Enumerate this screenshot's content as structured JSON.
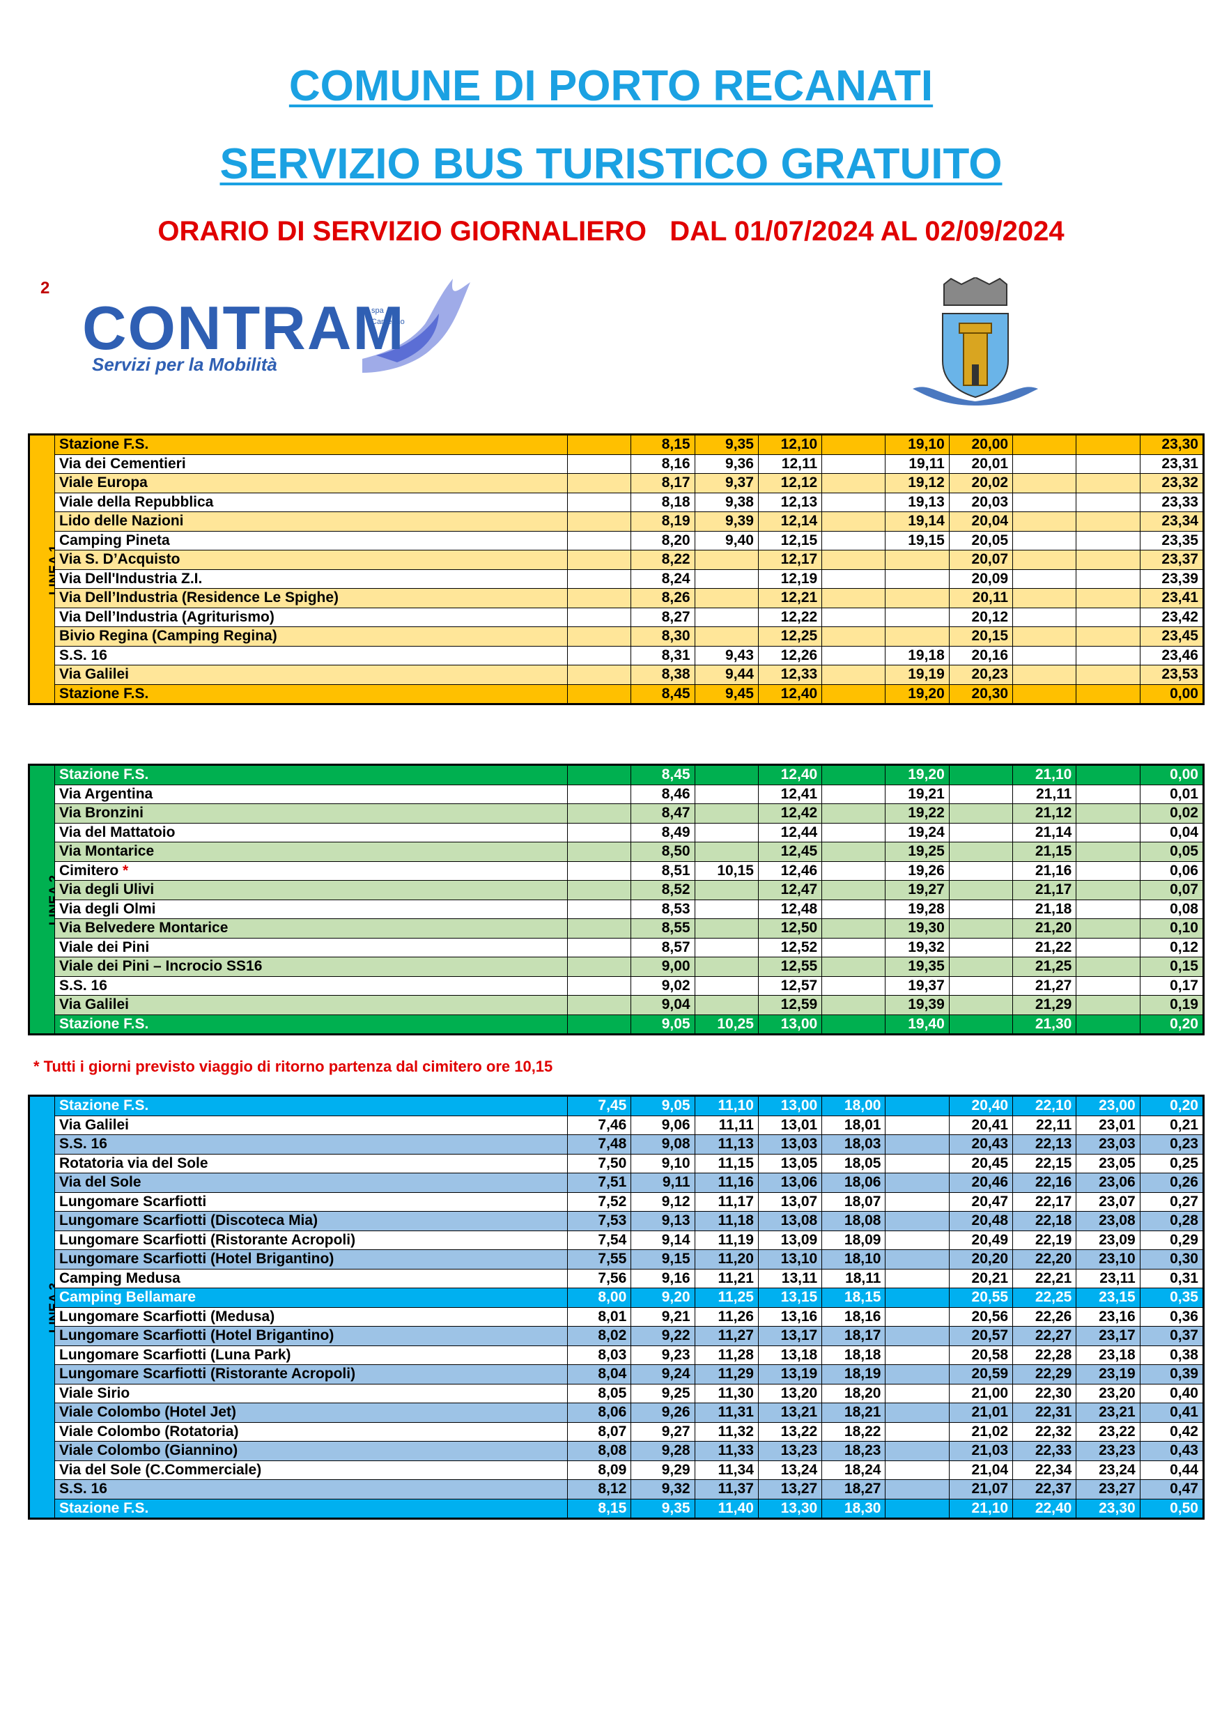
{
  "header": {
    "title": "COMUNE DI PORTO RECANATI",
    "subtitle": "SERVIZIO BUS TURISTICO GRATUITO",
    "schedule": "ORARIO DI SERVIZIO GIORNALIERO   DAL 01/07/2024 AL 02/09/2024"
  },
  "page_number": "2",
  "logo": {
    "name": "CONTRAM",
    "small": [
      "spa",
      "Camerino"
    ],
    "tagline": "Servizi per la Mobilità"
  },
  "tables": [
    {
      "label": "LINEA 1",
      "rows": [
        {
          "name": "Stazione F.S.",
          "times": [
            null,
            "8,15",
            "9,35",
            "12,10",
            null,
            "19,10",
            "20,00",
            null,
            null,
            "23,30"
          ]
        },
        {
          "name": "Via dei Cementieri",
          "times": [
            null,
            "8,16",
            "9,36",
            "12,11",
            null,
            "19,11",
            "20,01",
            null,
            null,
            "23,31"
          ]
        },
        {
          "name": "Viale Europa",
          "times": [
            null,
            "8,17",
            "9,37",
            "12,12",
            null,
            "19,12",
            "20,02",
            null,
            null,
            "23,32"
          ]
        },
        {
          "name": "Viale della Repubblica",
          "times": [
            null,
            "8,18",
            "9,38",
            "12,13",
            null,
            "19,13",
            "20,03",
            null,
            null,
            "23,33"
          ]
        },
        {
          "name": "Lido delle Nazioni",
          "times": [
            null,
            "8,19",
            "9,39",
            "12,14",
            null,
            "19,14",
            "20,04",
            null,
            null,
            "23,34"
          ]
        },
        {
          "name": "Camping Pineta",
          "times": [
            null,
            "8,20",
            "9,40",
            "12,15",
            null,
            "19,15",
            "20,05",
            null,
            null,
            "23,35"
          ]
        },
        {
          "name": "Via S. D’Acquisto",
          "times": [
            null,
            "8,22",
            null,
            "12,17",
            null,
            null,
            "20,07",
            null,
            null,
            "23,37"
          ]
        },
        {
          "name": "Via Dell'Industria Z.I.",
          "times": [
            null,
            "8,24",
            null,
            "12,19",
            null,
            null,
            "20,09",
            null,
            null,
            "23,39"
          ]
        },
        {
          "name": "Via Dell’Industria (Residence Le Spighe)",
          "times": [
            null,
            "8,26",
            null,
            "12,21",
            null,
            null,
            "20,11",
            null,
            null,
            "23,41"
          ]
        },
        {
          "name": "Via Dell’Industria (Agriturismo)",
          "times": [
            null,
            "8,27",
            null,
            "12,22",
            null,
            null,
            "20,12",
            null,
            null,
            "23,42"
          ]
        },
        {
          "name": "Bivio Regina (Camping Regina)",
          "times": [
            null,
            "8,30",
            null,
            "12,25",
            null,
            null,
            "20,15",
            null,
            null,
            "23,45"
          ]
        },
        {
          "name": "S.S. 16",
          "times": [
            null,
            "8,31",
            "9,43",
            "12,26",
            null,
            "19,18",
            "20,16",
            null,
            null,
            "23,46"
          ]
        },
        {
          "name": "Via Galilei",
          "times": [
            null,
            "8,38",
            "9,44",
            "12,33",
            null,
            "19,19",
            "20,23",
            null,
            null,
            "23,53"
          ]
        },
        {
          "name": "Stazione F.S.",
          "times": [
            null,
            "8,45",
            "9,45",
            "12,40",
            null,
            "19,20",
            "20,30",
            null,
            null,
            "0,00"
          ]
        }
      ]
    },
    {
      "label": "LINEA 2",
      "rows": [
        {
          "name": "Stazione F.S.",
          "times": [
            null,
            "8,45",
            null,
            "12,40",
            null,
            "19,20",
            null,
            "21,10",
            null,
            "0,00"
          ]
        },
        {
          "name": "Via Argentina",
          "times": [
            null,
            "8,46",
            null,
            "12,41",
            null,
            "19,21",
            null,
            "21,11",
            null,
            "0,01"
          ]
        },
        {
          "name": "Via Bronzini",
          "times": [
            null,
            "8,47",
            null,
            "12,42",
            null,
            "19,22",
            null,
            "21,12",
            null,
            "0,02"
          ]
        },
        {
          "name": "Via del Mattatoio",
          "times": [
            null,
            "8,49",
            null,
            "12,44",
            null,
            "19,24",
            null,
            "21,14",
            null,
            "0,04"
          ]
        },
        {
          "name": "Via Montarice",
          "times": [
            null,
            "8,50",
            null,
            "12,45",
            null,
            "19,25",
            null,
            "21,15",
            null,
            "0,05"
          ]
        },
        {
          "name": "Cimitero",
          "mark": "*",
          "times": [
            null,
            "8,51",
            "10,15",
            "12,46",
            null,
            "19,26",
            null,
            "21,16",
            null,
            "0,06"
          ]
        },
        {
          "name": "Via degli Ulivi",
          "times": [
            null,
            "8,52",
            null,
            "12,47",
            null,
            "19,27",
            null,
            "21,17",
            null,
            "0,07"
          ]
        },
        {
          "name": "Via degli Olmi",
          "times": [
            null,
            "8,53",
            null,
            "12,48",
            null,
            "19,28",
            null,
            "21,18",
            null,
            "0,08"
          ]
        },
        {
          "name": "Via Belvedere Montarice",
          "times": [
            null,
            "8,55",
            null,
            "12,50",
            null,
            "19,30",
            null,
            "21,20",
            null,
            "0,10"
          ]
        },
        {
          "name": "Viale dei Pini",
          "times": [
            null,
            "8,57",
            null,
            "12,52",
            null,
            "19,32",
            null,
            "21,22",
            null,
            "0,12"
          ]
        },
        {
          "name": "Viale dei Pini – Incrocio SS16",
          "times": [
            null,
            "9,00",
            null,
            "12,55",
            null,
            "19,35",
            null,
            "21,25",
            null,
            "0,15"
          ]
        },
        {
          "name": "S.S. 16",
          "times": [
            null,
            "9,02",
            null,
            "12,57",
            null,
            "19,37",
            null,
            "21,27",
            null,
            "0,17"
          ]
        },
        {
          "name": "Via Galilei",
          "times": [
            null,
            "9,04",
            null,
            "12,59",
            null,
            "19,39",
            null,
            "21,29",
            null,
            "0,19"
          ]
        },
        {
          "name": "Stazione F.S.",
          "times": [
            null,
            "9,05",
            "10,25",
            "13,00",
            null,
            "19,40",
            null,
            "21,30",
            null,
            "0,20"
          ]
        }
      ]
    },
    {
      "label": "LINEA 3",
      "rows": [
        {
          "name": "Stazione F.S.",
          "times": [
            "7,45",
            "9,05",
            "11,10",
            "13,00",
            "18,00",
            null,
            "20,40",
            "22,10",
            "23,00",
            "0,20"
          ]
        },
        {
          "name": "Via Galilei",
          "times": [
            "7,46",
            "9,06",
            "11,11",
            "13,01",
            "18,01",
            null,
            "20,41",
            "22,11",
            "23,01",
            "0,21"
          ]
        },
        {
          "name": "S.S. 16",
          "times": [
            "7,48",
            "9,08",
            "11,13",
            "13,03",
            "18,03",
            null,
            "20,43",
            "22,13",
            "23,03",
            "0,23"
          ]
        },
        {
          "name": "Rotatoria via del Sole",
          "times": [
            "7,50",
            "9,10",
            "11,15",
            "13,05",
            "18,05",
            null,
            "20,45",
            "22,15",
            "23,05",
            "0,25"
          ]
        },
        {
          "name": "Via del Sole",
          "times": [
            "7,51",
            "9,11",
            "11,16",
            "13,06",
            "18,06",
            null,
            "20,46",
            "22,16",
            "23,06",
            "0,26"
          ]
        },
        {
          "name": "Lungomare Scarfiotti",
          "times": [
            "7,52",
            "9,12",
            "11,17",
            "13,07",
            "18,07",
            null,
            "20,47",
            "22,17",
            "23,07",
            "0,27"
          ]
        },
        {
          "name": "Lungomare Scarfiotti (Discoteca Mia)",
          "times": [
            "7,53",
            "9,13",
            "11,18",
            "13,08",
            "18,08",
            null,
            "20,48",
            "22,18",
            "23,08",
            "0,28"
          ]
        },
        {
          "name": "Lungomare Scarfiotti (Ristorante Acropoli)",
          "times": [
            "7,54",
            "9,14",
            "11,19",
            "13,09",
            "18,09",
            null,
            "20,49",
            "22,19",
            "23,09",
            "0,29"
          ]
        },
        {
          "name": "Lungomare Scarfiotti (Hotel Brigantino)",
          "times": [
            "7,55",
            "9,15",
            "11,20",
            "13,10",
            "18,10",
            null,
            "20,20",
            "22,20",
            "23,10",
            "0,30"
          ]
        },
        {
          "name": "Camping Medusa",
          "times": [
            "7,56",
            "9,16",
            "11,21",
            "13,11",
            "18,11",
            null,
            "20,21",
            "22,21",
            "23,11",
            "0,31"
          ]
        },
        {
          "name": "Camping Bellamare",
          "times": [
            "8,00",
            "9,20",
            "11,25",
            "13,15",
            "18,15",
            null,
            "20,55",
            "22,25",
            "23,15",
            "0,35"
          ]
        },
        {
          "name": "Lungomare Scarfiotti (Medusa)",
          "times": [
            "8,01",
            "9,21",
            "11,26",
            "13,16",
            "18,16",
            null,
            "20,56",
            "22,26",
            "23,16",
            "0,36"
          ]
        },
        {
          "name": "Lungomare Scarfiotti (Hotel Brigantino)",
          "times": [
            "8,02",
            "9,22",
            "11,27",
            "13,17",
            "18,17",
            null,
            "20,57",
            "22,27",
            "23,17",
            "0,37"
          ]
        },
        {
          "name": "Lungomare Scarfiotti (Luna Park)",
          "times": [
            "8,03",
            "9,23",
            "11,28",
            "13,18",
            "18,18",
            null,
            "20,58",
            "22,28",
            "23,18",
            "0,38"
          ]
        },
        {
          "name": "Lungomare Scarfiotti (Ristorante Acropoli)",
          "times": [
            "8,04",
            "9,24",
            "11,29",
            "13,19",
            "18,19",
            null,
            "20,59",
            "22,29",
            "23,19",
            "0,39"
          ]
        },
        {
          "name": "Viale Sirio",
          "times": [
            "8,05",
            "9,25",
            "11,30",
            "13,20",
            "18,20",
            null,
            "21,00",
            "22,30",
            "23,20",
            "0,40"
          ]
        },
        {
          "name": "Viale Colombo (Hotel Jet)",
          "times": [
            "8,06",
            "9,26",
            "11,31",
            "13,21",
            "18,21",
            null,
            "21,01",
            "22,31",
            "23,21",
            "0,41"
          ]
        },
        {
          "name": "Viale Colombo (Rotatoria)",
          "times": [
            "8,07",
            "9,27",
            "11,32",
            "13,22",
            "18,22",
            null,
            "21,02",
            "22,32",
            "23,22",
            "0,42"
          ]
        },
        {
          "name": "Viale Colombo (Giannino)",
          "times": [
            "8,08",
            "9,28",
            "11,33",
            "13,23",
            "18,23",
            null,
            "21,03",
            "22,33",
            "23,23",
            "0,43"
          ]
        },
        {
          "name": "Via del Sole (C.Commerciale)",
          "times": [
            "8,09",
            "9,29",
            "11,34",
            "13,24",
            "18,24",
            null,
            "21,04",
            "22,34",
            "23,24",
            "0,44"
          ]
        },
        {
          "name": "S.S. 16",
          "times": [
            "8,12",
            "9,32",
            "11,37",
            "13,27",
            "18,27",
            null,
            "21,07",
            "22,37",
            "23,27",
            "0,47"
          ]
        },
        {
          "name": "Stazione F.S.",
          "times": [
            "8,15",
            "9,35",
            "11,40",
            "13,30",
            "18,30",
            null,
            "21,10",
            "22,40",
            "23,30",
            "0,50"
          ]
        }
      ]
    }
  ],
  "footnote": "* Tutti i giorni previsto viaggio di ritorno partenza dal cimitero ore 10,15"
}
